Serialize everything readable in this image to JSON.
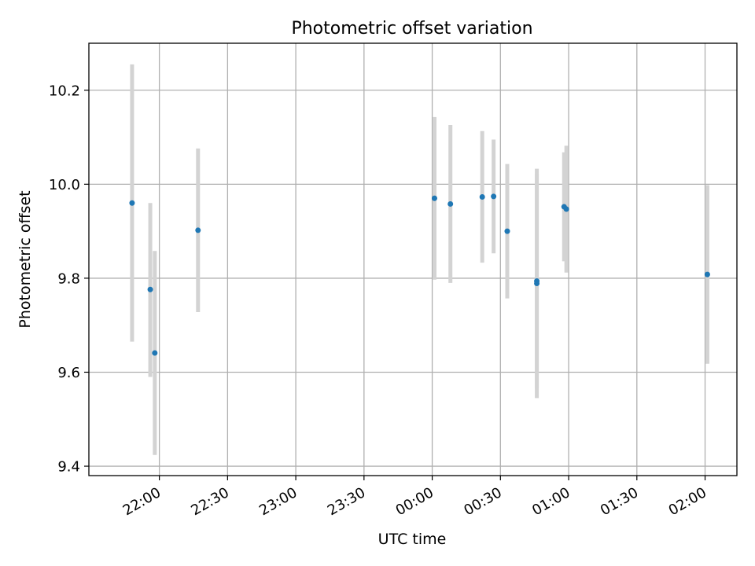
{
  "chart_data": {
    "type": "scatter",
    "title": "Photometric offset variation",
    "xlabel": "UTC time",
    "ylabel": "Photometric offset",
    "x_unit": "UTC time (HH:MM)",
    "xlim": [
      "21:29",
      "02:14"
    ],
    "ylim": [
      9.38,
      10.3
    ],
    "x_ticks": [
      "22:00",
      "22:30",
      "23:00",
      "23:30",
      "00:00",
      "00:30",
      "01:00",
      "01:30",
      "02:00"
    ],
    "y_ticks": [
      "9.4",
      "9.6",
      "9.8",
      "10.0",
      "10.2"
    ],
    "grid": true,
    "point_color": "#1f77b4",
    "errorbar_color": "#d3d3d3",
    "points": [
      {
        "x": "21:48",
        "y": 9.96,
        "ylow": 9.665,
        "yhigh": 10.255
      },
      {
        "x": "21:56",
        "y": 9.776,
        "ylow": 9.59,
        "yhigh": 9.96
      },
      {
        "x": "21:58",
        "y": 9.641,
        "ylow": 9.424,
        "yhigh": 9.858
      },
      {
        "x": "22:17",
        "y": 9.902,
        "ylow": 9.728,
        "yhigh": 10.076
      },
      {
        "x": "00:01",
        "y": 9.97,
        "ylow": 9.797,
        "yhigh": 10.143
      },
      {
        "x": "00:08",
        "y": 9.958,
        "ylow": 9.79,
        "yhigh": 10.126
      },
      {
        "x": "00:22",
        "y": 9.973,
        "ylow": 9.833,
        "yhigh": 10.113
      },
      {
        "x": "00:27",
        "y": 9.974,
        "ylow": 9.853,
        "yhigh": 10.095
      },
      {
        "x": "00:33",
        "y": 9.9,
        "ylow": 9.757,
        "yhigh": 10.043
      },
      {
        "x": "00:46",
        "y": 9.794,
        "ylow": 9.566,
        "yhigh": 10.022
      },
      {
        "x": "00:46",
        "y": 9.789,
        "ylow": 9.545,
        "yhigh": 10.033
      },
      {
        "x": "00:58",
        "y": 9.952,
        "ylow": 9.836,
        "yhigh": 10.068
      },
      {
        "x": "00:59",
        "y": 9.947,
        "ylow": 9.812,
        "yhigh": 10.082
      },
      {
        "x": "02:01",
        "y": 9.808,
        "ylow": 9.618,
        "yhigh": 9.998
      }
    ]
  }
}
